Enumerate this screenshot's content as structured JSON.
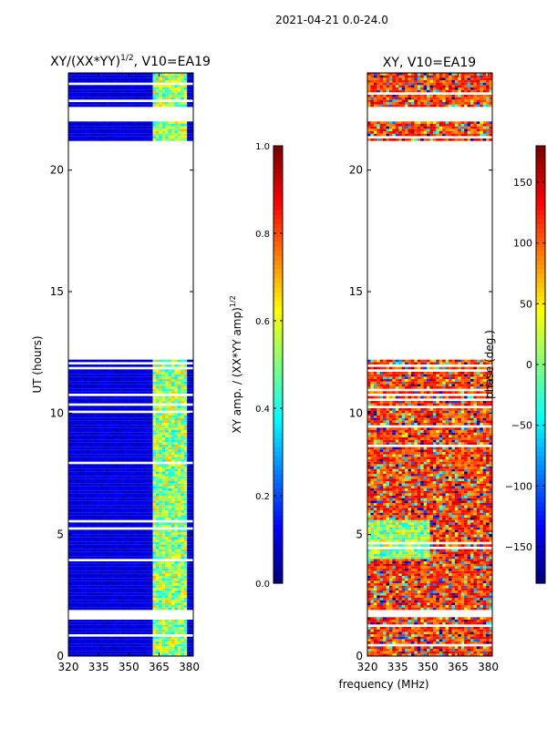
{
  "figure_title": "2021-04-21 0.0-24.0",
  "shared_xlabel": "frequency (MHz)",
  "chart_data": [
    {
      "type": "heatmap",
      "title_main": "XY/(XX*YY)",
      "title_sup": "1/2",
      "title_rest": ", V10=EA19",
      "xlabel": "frequency (MHz)",
      "ylabel": "UT (hours)",
      "xlim": [
        320,
        382
      ],
      "ylim": [
        0,
        24
      ],
      "xticks": [
        320,
        335,
        350,
        365,
        380
      ],
      "yticks": [
        0,
        5,
        10,
        15,
        20
      ],
      "data_blocks": [
        [
          0,
          1.6
        ],
        [
          1.9,
          12.2
        ],
        [
          21.2,
          22
        ],
        [
          22.6,
          24
        ]
      ],
      "colorbar": {
        "label_main": "XY amp. / (XX*YY amp)",
        "label_sup": "1/2",
        "range": [
          0.0,
          1.0
        ],
        "ticks": [
          0.0,
          0.2,
          0.4,
          0.6,
          0.8,
          1.0
        ],
        "tick_labels": [
          "0.0",
          "0.2",
          "0.4",
          "0.6",
          "0.8",
          "1.0"
        ],
        "colormap": "jet"
      }
    },
    {
      "type": "heatmap",
      "title": "XY, V10=EA19",
      "xlabel": "frequency (MHz)",
      "ylabel": "",
      "xlim": [
        320,
        382
      ],
      "ylim": [
        0,
        24
      ],
      "xticks": [
        320,
        335,
        350,
        365,
        380
      ],
      "yticks": [
        0,
        5,
        10,
        15,
        20
      ],
      "data_blocks": [
        [
          0,
          1.6
        ],
        [
          1.9,
          12.2
        ],
        [
          21.2,
          22
        ],
        [
          22.6,
          24
        ]
      ],
      "colorbar": {
        "label": "phase (deg.)",
        "range": [
          -180,
          180
        ],
        "ticks": [
          -150,
          -100,
          -50,
          0,
          50,
          100,
          150
        ],
        "tick_labels": [
          "−150",
          "−100",
          "−50",
          "0",
          "50",
          "100",
          "150"
        ],
        "colormap": "jet"
      }
    }
  ]
}
